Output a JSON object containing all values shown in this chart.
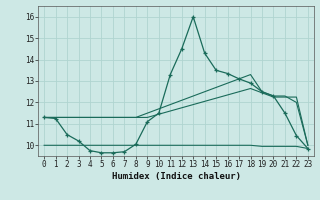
{
  "xlabel": "Humidex (Indice chaleur)",
  "background_color": "#cde8e5",
  "grid_color": "#b0d4d0",
  "line_color": "#1a6b5a",
  "xlim": [
    -0.5,
    23.5
  ],
  "ylim": [
    9.5,
    16.5
  ],
  "yticks": [
    10,
    11,
    12,
    13,
    14,
    15,
    16
  ],
  "xticks": [
    0,
    1,
    2,
    3,
    4,
    5,
    6,
    7,
    8,
    9,
    10,
    11,
    12,
    13,
    14,
    15,
    16,
    17,
    18,
    19,
    20,
    21,
    22,
    23
  ],
  "curve1_x": [
    0,
    1,
    2,
    3,
    4,
    5,
    6,
    7,
    8,
    9,
    10,
    11,
    12,
    13,
    14,
    15,
    16,
    17,
    18,
    19,
    20,
    21,
    22,
    23
  ],
  "curve1_y": [
    11.3,
    11.25,
    10.5,
    10.2,
    9.75,
    9.65,
    9.65,
    9.7,
    10.05,
    11.1,
    11.5,
    13.3,
    14.5,
    16.0,
    14.3,
    13.5,
    13.35,
    13.1,
    12.9,
    12.5,
    12.3,
    11.5,
    10.45,
    9.85
  ],
  "curve2_x": [
    0,
    1,
    2,
    3,
    4,
    5,
    6,
    7,
    8,
    9,
    10,
    11,
    12,
    13,
    14,
    15,
    16,
    17,
    18,
    19,
    20,
    21,
    22,
    23
  ],
  "curve2_y": [
    11.3,
    11.3,
    11.3,
    11.3,
    11.3,
    11.3,
    11.3,
    11.3,
    11.3,
    11.3,
    11.45,
    11.6,
    11.75,
    11.9,
    12.05,
    12.2,
    12.35,
    12.5,
    12.65,
    12.45,
    12.25,
    12.25,
    12.25,
    10.0
  ],
  "curve3_x": [
    0,
    1,
    2,
    3,
    4,
    5,
    6,
    7,
    8,
    9,
    10,
    11,
    12,
    13,
    14,
    15,
    16,
    17,
    18,
    19,
    20,
    21,
    22,
    23
  ],
  "curve3_y": [
    11.3,
    11.3,
    11.3,
    11.3,
    11.3,
    11.3,
    11.3,
    11.3,
    11.3,
    11.5,
    11.7,
    11.9,
    12.1,
    12.3,
    12.5,
    12.7,
    12.9,
    13.1,
    13.3,
    12.5,
    12.3,
    12.3,
    12.0,
    10.0
  ],
  "curve4_x": [
    0,
    10,
    11,
    12,
    13,
    14,
    15,
    16,
    17,
    18,
    19,
    20,
    21,
    22,
    23
  ],
  "curve4_y": [
    10.0,
    10.0,
    10.0,
    10.0,
    10.0,
    10.0,
    10.0,
    10.0,
    10.0,
    10.0,
    9.95,
    9.95,
    9.95,
    9.95,
    9.85
  ]
}
